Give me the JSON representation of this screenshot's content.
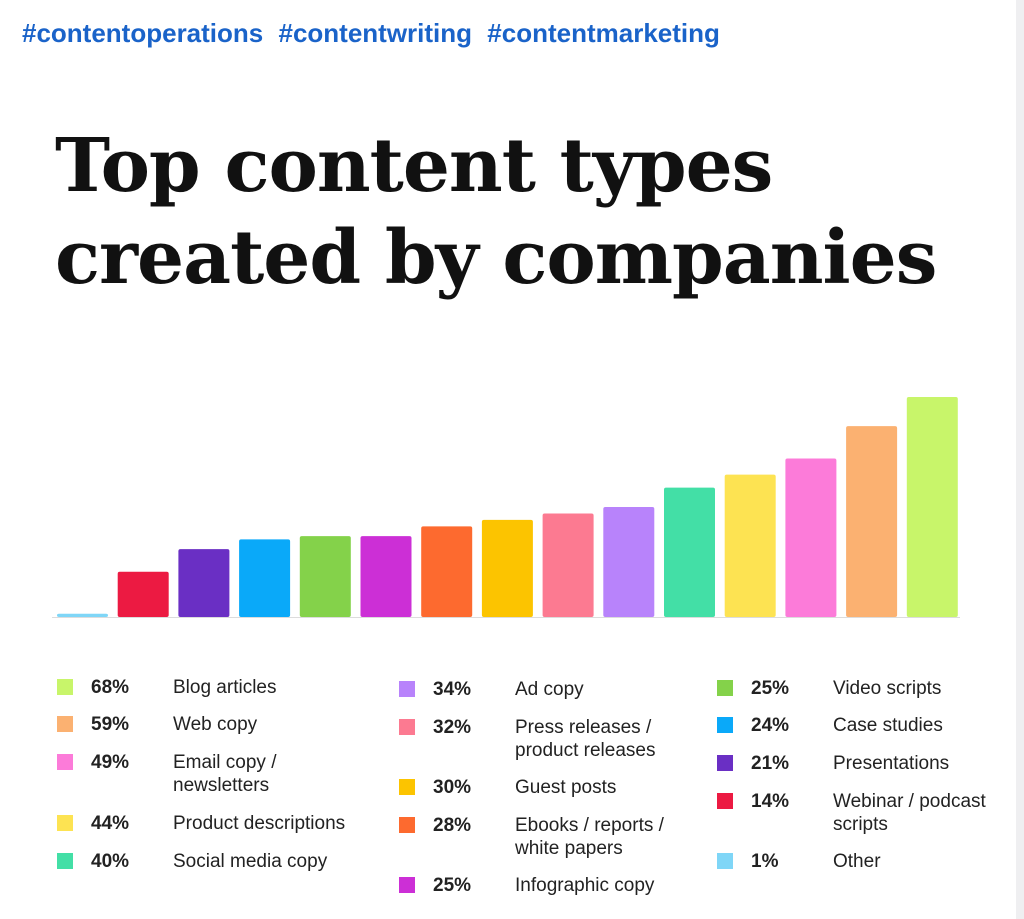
{
  "hashtags": [
    "#contentoperations",
    "#contentwriting",
    "#contentmarketing"
  ],
  "title_lines": [
    "Top content types",
    "created by companies"
  ],
  "colors": {
    "hashtag": "#1a63c9",
    "title": "#111111",
    "baseline": "#dcdcdc"
  },
  "chart_data": {
    "type": "bar",
    "title": "Top content types created by companies",
    "ylim": [
      0,
      68
    ],
    "bars_order": [
      "Other",
      "Webinar / podcast scripts",
      "Presentations",
      "Case studies",
      "Video scripts",
      "Infographic copy",
      "Ebooks / reports / white papers",
      "Guest posts",
      "Press releases / product releases",
      "Ad copy",
      "Social media copy",
      "Product descriptions",
      "Email copy / newsletters",
      "Web copy",
      "Blog articles"
    ],
    "series": [
      {
        "label": "Blog articles",
        "value": 68,
        "pct": "68%",
        "color": "#c8f56a"
      },
      {
        "label": "Web copy",
        "value": 59,
        "pct": "59%",
        "color": "#fbb171"
      },
      {
        "label": "Email copy / newsletters",
        "value": 49,
        "pct": "49%",
        "color": "#fc7bd9"
      },
      {
        "label": "Product descriptions",
        "value": 44,
        "pct": "44%",
        "color": "#fde352"
      },
      {
        "label": "Social media copy",
        "value": 40,
        "pct": "40%",
        "color": "#43dfa6"
      },
      {
        "label": "Ad copy",
        "value": 34,
        "pct": "34%",
        "color": "#b883fb"
      },
      {
        "label": "Press releases / product releases",
        "value": 32,
        "pct": "32%",
        "color": "#fc7a91"
      },
      {
        "label": "Guest posts",
        "value": 30,
        "pct": "30%",
        "color": "#fcc400"
      },
      {
        "label": "Ebooks / reports / white papers",
        "value": 28,
        "pct": "28%",
        "color": "#fd6a2f"
      },
      {
        "label": "Infographic copy",
        "value": 25,
        "pct": "25%",
        "color": "#cc2fd6"
      },
      {
        "label": "Video scripts",
        "value": 25,
        "pct": "25%",
        "color": "#84d24a"
      },
      {
        "label": "Case studies",
        "value": 24,
        "pct": "24%",
        "color": "#0aa9f9"
      },
      {
        "label": "Presentations",
        "value": 21,
        "pct": "21%",
        "color": "#6a2fc4"
      },
      {
        "label": "Webinar / podcast scripts",
        "value": 14,
        "pct": "14%",
        "color": "#ec1a42"
      },
      {
        "label": "Other",
        "value": 1,
        "pct": "1%",
        "color": "#7fd6f7"
      }
    ]
  }
}
